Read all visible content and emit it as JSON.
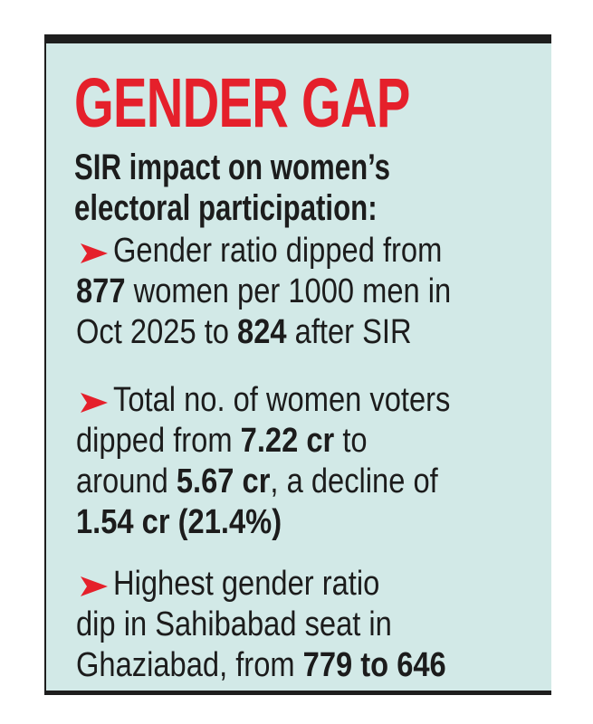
{
  "title": "GENDER GAP",
  "subtitle_lines": [
    "SIR impact on women’s",
    "electoral participation:"
  ],
  "accent_color": "#e5202b",
  "background_color": "#d2e9e7",
  "bullet_icon": "red-arrowhead-icon",
  "bullets": [
    {
      "lines": [
        [
          {
            "text": "Gender ratio dipped from",
            "bold": false
          }
        ],
        [
          {
            "text": "877",
            "bold": true
          },
          {
            "text": " women per 1000 men in",
            "bold": false
          }
        ],
        [
          {
            "text": "Oct 2025 to ",
            "bold": false
          },
          {
            "text": "824",
            "bold": true
          },
          {
            "text": " after SIR",
            "bold": false
          }
        ]
      ]
    },
    {
      "lines": [
        [
          {
            "text": "Total no. of women voters",
            "bold": false
          }
        ],
        [
          {
            "text": "dipped from ",
            "bold": false
          },
          {
            "text": "7.22 cr",
            "bold": true
          },
          {
            "text": " to",
            "bold": false
          }
        ],
        [
          {
            "text": "around ",
            "bold": false
          },
          {
            "text": "5.67 cr",
            "bold": true
          },
          {
            "text": ", a decline of",
            "bold": false
          }
        ],
        [
          {
            "text": "1.54 cr (21.4%)",
            "bold": true
          }
        ]
      ]
    },
    {
      "lines": [
        [
          {
            "text": "Highest gender ratio",
            "bold": false
          }
        ],
        [
          {
            "text": "dip in Sahibabad seat in",
            "bold": false
          }
        ],
        [
          {
            "text": "Ghaziabad, from ",
            "bold": false
          },
          {
            "text": "779 to 646",
            "bold": true
          }
        ]
      ]
    }
  ]
}
